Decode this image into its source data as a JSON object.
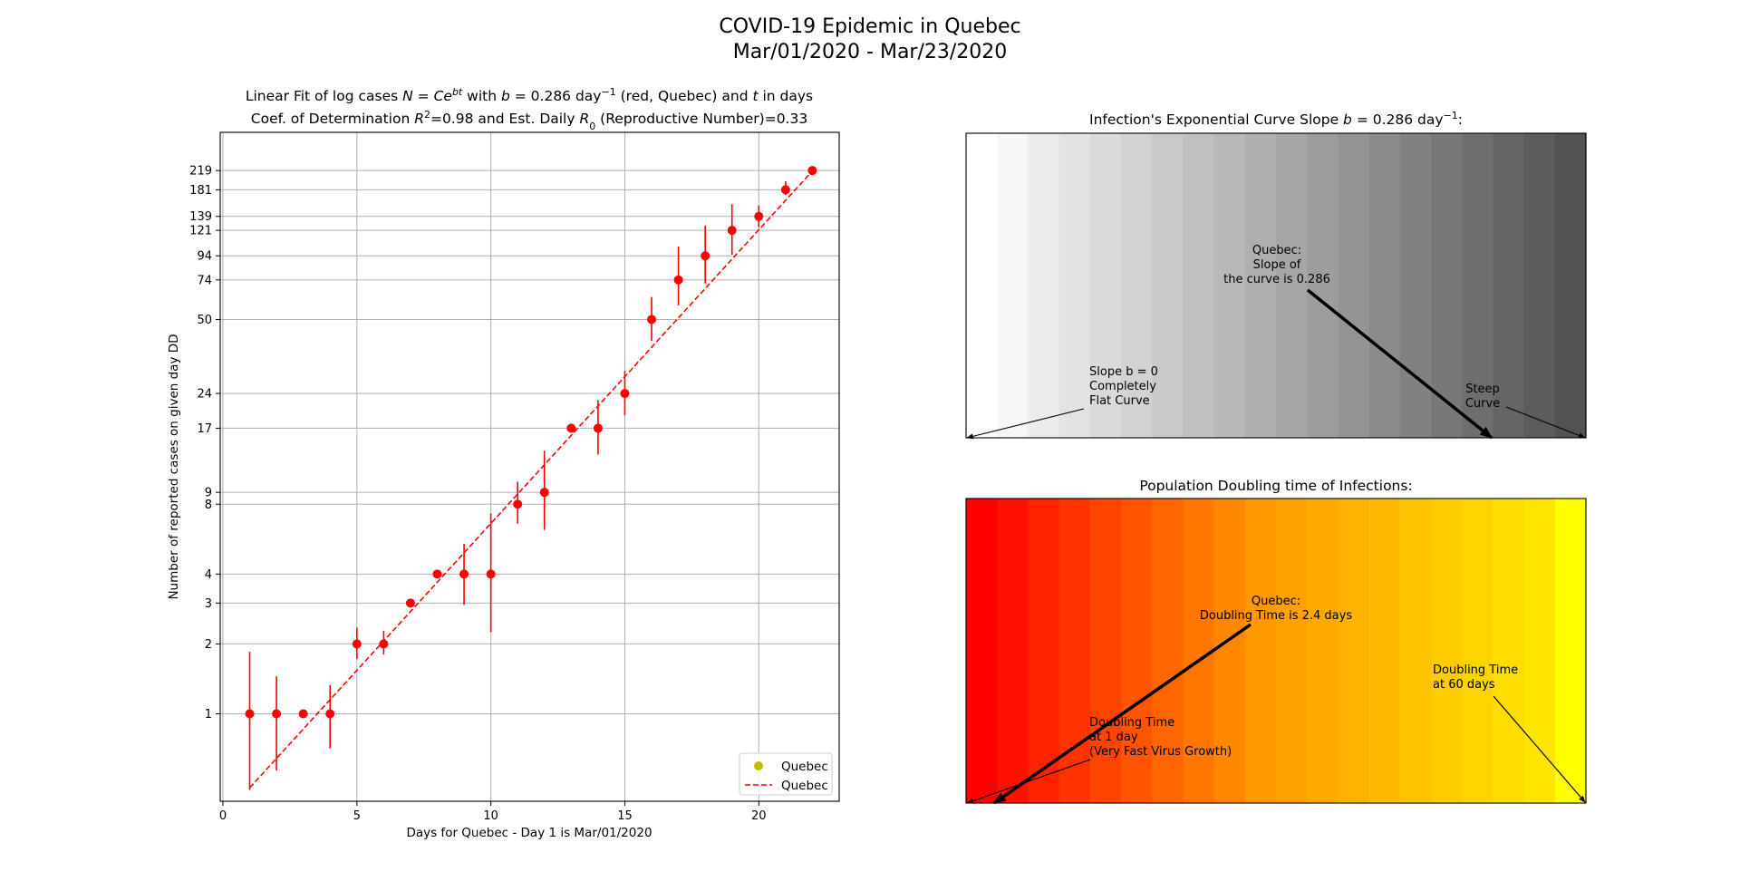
{
  "figure": {
    "title_line1": "COVID-19 Epidemic in Quebec",
    "title_line2": "Mar/01/2020 - Mar/23/2020"
  },
  "chart_data": [
    {
      "type": "scatter",
      "title_line1_parts": [
        "Linear Fit of log cases ",
        "N",
        " = ",
        "Ce",
        "bt",
        " with ",
        "b",
        " = 0.286 day",
        "−1",
        " (red, Quebec) and ",
        "t",
        " in days"
      ],
      "title_line2_parts": [
        "Coef. of Determination ",
        "R",
        "2",
        "=0.98 and Est. Daily ",
        "R",
        "0",
        " (Reproductive Number)=0.33"
      ],
      "xlabel": "Days for Quebec - Day 1 is Mar/01/2020",
      "ylabel": "Number of reported cases on given day DD",
      "y_scale": "log",
      "xlim": [
        -0.1,
        23.0
      ],
      "ylim": [
        0.42,
        320
      ],
      "x_ticks": [
        0,
        5,
        10,
        15,
        20
      ],
      "y_ticks": [
        1,
        2,
        3,
        4,
        8,
        9,
        17,
        24,
        50,
        74,
        94,
        121,
        139,
        181,
        219
      ],
      "grid": true,
      "legend_position": "lower-right",
      "legend": [
        {
          "label": "Quebec",
          "marker": "dot",
          "color": "#bfbf00"
        },
        {
          "label": "Quebec",
          "marker": "dashed-line",
          "color": "#ff0000"
        }
      ],
      "series": [
        {
          "label_index": 0,
          "color": "#ff0000",
          "x": [
            1,
            2,
            3,
            4,
            5,
            6,
            7,
            8,
            9,
            10,
            11,
            12,
            13,
            14,
            15,
            16,
            17,
            18,
            19,
            20,
            21,
            22
          ],
          "y": [
            1,
            1,
            1,
            1,
            2,
            2,
            3,
            4,
            4,
            4,
            8,
            9,
            17,
            17,
            24,
            50,
            74,
            94,
            121,
            139,
            181,
            219
          ],
          "err_low": [
            0.47,
            0.57,
            1.0,
            0.71,
            1.72,
            1.8,
            3.0,
            4.0,
            2.95,
            2.25,
            6.6,
            6.2,
            17.0,
            13.1,
            19.3,
            40.5,
            57.5,
            71.5,
            95.0,
            125.0,
            172.0,
            219.0
          ],
          "err_high": [
            1.85,
            1.45,
            1.0,
            1.33,
            2.35,
            2.28,
            3.0,
            4.0,
            5.4,
            7.3,
            10.0,
            13.6,
            17.0,
            22.5,
            30.0,
            62.5,
            103.0,
            127.0,
            157.0,
            155.0,
            197.0,
            219.0
          ]
        }
      ],
      "fit": {
        "label_index": 1,
        "color": "#ff0000",
        "style": "dashed",
        "x": [
          1,
          22
        ],
        "y": [
          0.48,
          218
        ]
      }
    },
    {
      "type": "heatmap",
      "title_parts": [
        "Infection's Exponential Curve Slope ",
        "b",
        " = 0.286 day",
        "−1",
        ":"
      ],
      "colors": [
        "#ffffff",
        "#f6f6f6",
        "#ececec",
        "#e3e3e3",
        "#dadada",
        "#d2d2d2",
        "#c9c9c9",
        "#c1c1c1",
        "#b8b8b8",
        "#afafaf",
        "#a6a6a6",
        "#9d9d9d",
        "#949494",
        "#8b8b8b",
        "#818181",
        "#787878",
        "#6e6e6e",
        "#656565",
        "#5c5c5c",
        "#525252"
      ],
      "annotations": [
        {
          "lines": [
            "Quebec:",
            "Slope of",
            "the curve is 0.286"
          ],
          "align": "center"
        },
        {
          "lines": [
            "Slope b = 0",
            "Completely",
            "Flat Curve"
          ],
          "align": "left"
        },
        {
          "lines": [
            "Steep",
            "Curve"
          ],
          "align": "center"
        }
      ]
    },
    {
      "type": "heatmap",
      "title_parts": [
        "Population Doubling time of Infections:"
      ],
      "colors": [
        "#ff0000",
        "#ff1100",
        "#ff2200",
        "#ff3300",
        "#ff4400",
        "#ff5500",
        "#ff6600",
        "#ff7700",
        "#ff8800",
        "#ff9900",
        "#ffa200",
        "#ffaa00",
        "#ffb300",
        "#ffbb00",
        "#ffc400",
        "#ffcc00",
        "#ffd500",
        "#ffdd00",
        "#ffe600",
        "#ffff00"
      ],
      "annotations": [
        {
          "lines": [
            "Quebec:",
            "Doubling Time is 2.4 days"
          ],
          "align": "center"
        },
        {
          "lines": [
            "Doubling Time",
            " at 1 day",
            "(Very Fast Virus Growth)"
          ],
          "align": "left"
        },
        {
          "lines": [
            "Doubling Time",
            " at 60 days"
          ],
          "align": "left"
        }
      ]
    }
  ]
}
